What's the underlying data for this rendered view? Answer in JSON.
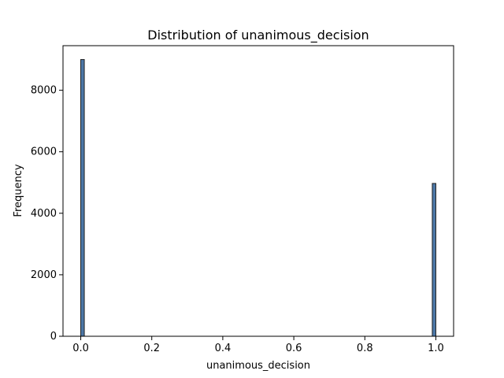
{
  "chart_data": {
    "type": "bar",
    "title": "Distribution of unanimous_decision",
    "xlabel": "unanimous_decision",
    "ylabel": "Frequency",
    "xlim": [
      -0.05,
      1.05
    ],
    "ylim": [
      0,
      9450
    ],
    "x_ticks": [
      0.0,
      0.2,
      0.4,
      0.6,
      0.8,
      1.0
    ],
    "x_tick_labels": [
      "0.0",
      "0.2",
      "0.4",
      "0.6",
      "0.8",
      "1.0"
    ],
    "y_ticks": [
      0,
      2000,
      4000,
      6000,
      8000
    ],
    "y_tick_labels": [
      "0",
      "2000",
      "4000",
      "6000",
      "8000"
    ],
    "bins": [
      {
        "x_start": 0.0,
        "x_end": 0.01,
        "value": 9000
      },
      {
        "x_start": 0.99,
        "x_end": 1.0,
        "value": 4970
      }
    ],
    "bar_color": "#4c78a8",
    "bar_edge_color": "#1f1f1f",
    "grid": false
  }
}
